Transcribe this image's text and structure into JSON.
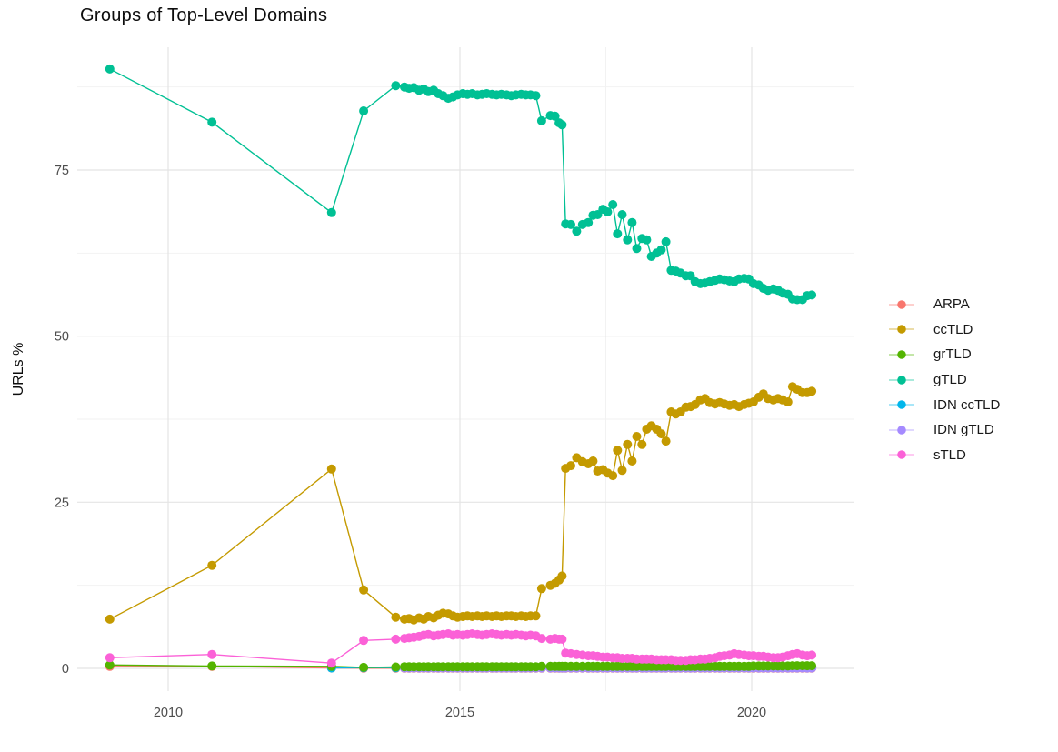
{
  "title": "Groups of Top-Level Domains",
  "y_axis": {
    "label": "URLs %",
    "ticks": [
      "0",
      "25",
      "50",
      "75"
    ]
  },
  "x_axis": {
    "ticks": [
      "2010",
      "2015",
      "2020"
    ]
  },
  "legend": {
    "position": "right",
    "items": [
      {
        "label": "ARPA",
        "color": "#F8766D"
      },
      {
        "label": "ccTLD",
        "color": "#C49A00"
      },
      {
        "label": "grTLD",
        "color": "#53B400"
      },
      {
        "label": "gTLD",
        "color": "#00C094"
      },
      {
        "label": "IDN ccTLD",
        "color": "#00B6EB"
      },
      {
        "label": "IDN gTLD",
        "color": "#A58AFF"
      },
      {
        "label": "sTLD",
        "color": "#FB61D7"
      }
    ]
  },
  "chart_data": {
    "type": "line",
    "title": "Groups of Top-Level Domains",
    "xlabel": "",
    "ylabel": "URLs %",
    "grid": true,
    "legend_position": "right",
    "x_ticks": [
      2010,
      2015,
      2020
    ],
    "x_minor_ticks": [
      2012.5,
      2017.5
    ],
    "y_ticks": [
      0,
      25,
      50,
      75
    ],
    "y_minor_ticks": [
      12.5,
      37.5,
      62.5,
      87.5
    ],
    "xlim": [
      2008.44,
      2021.76
    ],
    "ylim": [
      -3.4,
      93.5
    ],
    "x": [
      2009.0,
      2010.75,
      2012.8,
      2013.35,
      2013.9,
      2014.05,
      2014.13,
      2014.21,
      2014.3,
      2014.38,
      2014.46,
      2014.55,
      2014.63,
      2014.71,
      2014.8,
      2014.88,
      2014.96,
      2015.05,
      2015.13,
      2015.21,
      2015.3,
      2015.38,
      2015.46,
      2015.55,
      2015.63,
      2015.71,
      2015.8,
      2015.88,
      2015.96,
      2016.05,
      2016.13,
      2016.21,
      2016.3,
      2016.4,
      2016.55,
      2016.63,
      2016.7,
      2016.75,
      2016.81,
      2016.9,
      2017.0,
      2017.1,
      2017.2,
      2017.28,
      2017.36,
      2017.45,
      2017.53,
      2017.62,
      2017.7,
      2017.78,
      2017.87,
      2017.95,
      2018.03,
      2018.12,
      2018.2,
      2018.28,
      2018.37,
      2018.45,
      2018.53,
      2018.62,
      2018.7,
      2018.78,
      2018.87,
      2018.95,
      2019.03,
      2019.12,
      2019.2,
      2019.28,
      2019.37,
      2019.45,
      2019.53,
      2019.62,
      2019.7,
      2019.78,
      2019.87,
      2019.95,
      2020.03,
      2020.12,
      2020.2,
      2020.28,
      2020.37,
      2020.45,
      2020.53,
      2020.62,
      2020.7,
      2020.78,
      2020.87,
      2020.95,
      2021.03
    ],
    "series": [
      {
        "name": "ARPA",
        "color": "#F8766D",
        "values": [
          0.3,
          0.3,
          0.05,
          0.03,
          0.03,
          0.03,
          0.03,
          0.03,
          0.03,
          0.03,
          0.03,
          0.03,
          0.03,
          0.03,
          0.03,
          0.03,
          0.03,
          0.03,
          0.03,
          0.03,
          0.03,
          0.03,
          0.03,
          0.03,
          0.03,
          0.03,
          0.03,
          0.03,
          0.03,
          0.03,
          0.03,
          0.03,
          0.03,
          0.03,
          0.03,
          0.03,
          0.03,
          0.03,
          0.03,
          0.03,
          0.03,
          0.03,
          0.03,
          0.03,
          0.03,
          0.03,
          0.03,
          0.03,
          0.03,
          0.03,
          0.03,
          0.03,
          0.03,
          0.03,
          0.03,
          0.03,
          0.03,
          0.03,
          0.03,
          0.03,
          0.03,
          0.03,
          0.03,
          0.03,
          0.03,
          0.03,
          0.03,
          0.03,
          0.03,
          0.03,
          0.03,
          0.03,
          0.03,
          0.03,
          0.03,
          0.03,
          0.03,
          0.03,
          0.03,
          0.03,
          0.03,
          0.03,
          0.03,
          0.03,
          0.03,
          0.03,
          0.03,
          0.03,
          0.03
        ]
      },
      {
        "name": "ccTLD",
        "color": "#C49A00",
        "values": [
          7.4,
          15.5,
          30.0,
          11.8,
          7.7,
          7.4,
          7.5,
          7.3,
          7.6,
          7.4,
          7.8,
          7.6,
          8.0,
          8.3,
          8.2,
          7.9,
          7.7,
          7.8,
          7.9,
          7.8,
          7.9,
          7.8,
          7.9,
          7.8,
          7.9,
          7.8,
          7.9,
          7.9,
          7.8,
          7.9,
          7.8,
          7.9,
          7.9,
          12.0,
          12.5,
          12.8,
          13.3,
          13.9,
          30.1,
          30.5,
          31.7,
          31.1,
          30.8,
          31.2,
          29.7,
          29.9,
          29.4,
          29.0,
          32.8,
          29.8,
          33.7,
          31.2,
          34.9,
          33.7,
          36.0,
          36.5,
          36.0,
          35.3,
          34.2,
          38.6,
          38.3,
          38.6,
          39.3,
          39.4,
          39.7,
          40.4,
          40.6,
          40.0,
          39.8,
          40.0,
          39.8,
          39.6,
          39.7,
          39.4,
          39.7,
          39.9,
          40.1,
          40.8,
          41.3,
          40.6,
          40.4,
          40.6,
          40.4,
          40.1,
          42.4,
          42.0,
          41.5,
          41.5,
          41.7
        ]
      },
      {
        "name": "grTLD",
        "color": "#53B400",
        "values": [
          0.5,
          0.35,
          0.3,
          0.15,
          0.2,
          0.25,
          0.25,
          0.25,
          0.25,
          0.25,
          0.25,
          0.25,
          0.25,
          0.25,
          0.25,
          0.25,
          0.25,
          0.25,
          0.25,
          0.25,
          0.25,
          0.25,
          0.25,
          0.25,
          0.25,
          0.25,
          0.25,
          0.25,
          0.25,
          0.25,
          0.25,
          0.25,
          0.25,
          0.3,
          0.3,
          0.3,
          0.3,
          0.3,
          0.3,
          0.3,
          0.3,
          0.3,
          0.3,
          0.3,
          0.3,
          0.3,
          0.3,
          0.3,
          0.3,
          0.3,
          0.3,
          0.3,
          0.3,
          0.3,
          0.3,
          0.3,
          0.3,
          0.3,
          0.3,
          0.3,
          0.3,
          0.3,
          0.3,
          0.3,
          0.3,
          0.3,
          0.3,
          0.3,
          0.3,
          0.3,
          0.3,
          0.3,
          0.3,
          0.3,
          0.3,
          0.3,
          0.35,
          0.35,
          0.35,
          0.35,
          0.35,
          0.35,
          0.35,
          0.35,
          0.4,
          0.4,
          0.4,
          0.4,
          0.4
        ]
      },
      {
        "name": "gTLD",
        "color": "#00C094",
        "values": [
          90.2,
          82.2,
          68.6,
          83.9,
          87.7,
          87.5,
          87.3,
          87.4,
          87.0,
          87.2,
          86.8,
          87.0,
          86.5,
          86.2,
          85.8,
          86.0,
          86.3,
          86.5,
          86.4,
          86.5,
          86.3,
          86.4,
          86.5,
          86.4,
          86.3,
          86.4,
          86.3,
          86.2,
          86.3,
          86.4,
          86.3,
          86.3,
          86.2,
          82.4,
          83.2,
          83.1,
          82.1,
          81.8,
          66.9,
          66.8,
          65.8,
          66.8,
          67.1,
          68.2,
          68.3,
          69.1,
          68.7,
          69.8,
          65.4,
          68.3,
          64.5,
          67.1,
          63.2,
          64.7,
          64.5,
          62.0,
          62.5,
          63.0,
          64.2,
          59.9,
          59.8,
          59.5,
          59.1,
          59.1,
          58.2,
          57.9,
          58.0,
          58.2,
          58.4,
          58.6,
          58.5,
          58.3,
          58.2,
          58.6,
          58.7,
          58.6,
          57.9,
          57.7,
          57.2,
          56.9,
          57.1,
          56.9,
          56.5,
          56.3,
          55.6,
          55.5,
          55.5,
          56.1,
          56.2
        ]
      },
      {
        "name": "IDN ccTLD",
        "color": "#00B6EB",
        "values": [
          null,
          null,
          0.05,
          0.1,
          0.1,
          0.1,
          0.1,
          0.1,
          0.1,
          0.1,
          0.1,
          0.1,
          0.1,
          0.1,
          0.1,
          0.1,
          0.1,
          0.1,
          0.1,
          0.1,
          0.1,
          0.1,
          0.1,
          0.1,
          0.1,
          0.1,
          0.1,
          0.1,
          0.1,
          0.1,
          0.1,
          0.1,
          0.1,
          0.1,
          0.1,
          0.1,
          0.1,
          0.1,
          0.1,
          0.1,
          0.1,
          0.1,
          0.1,
          0.1,
          0.1,
          0.1,
          0.1,
          0.1,
          0.1,
          0.1,
          0.1,
          0.1,
          0.1,
          0.1,
          0.1,
          0.1,
          0.1,
          0.1,
          0.1,
          0.1,
          0.1,
          0.1,
          0.1,
          0.1,
          0.1,
          0.1,
          0.1,
          0.1,
          0.1,
          0.1,
          0.1,
          0.1,
          0.1,
          0.1,
          0.1,
          0.1,
          0.1,
          0.1,
          0.1,
          0.1,
          0.1,
          0.1,
          0.1,
          0.1,
          0.1,
          0.1,
          0.1,
          0.1,
          0.1
        ]
      },
      {
        "name": "IDN gTLD",
        "color": "#A58AFF",
        "values": [
          null,
          null,
          null,
          null,
          null,
          0.05,
          0.05,
          0.05,
          0.05,
          0.05,
          0.05,
          0.05,
          0.05,
          0.05,
          0.05,
          0.05,
          0.05,
          0.05,
          0.05,
          0.05,
          0.05,
          0.05,
          0.05,
          0.05,
          0.05,
          0.05,
          0.05,
          0.05,
          0.05,
          0.05,
          0.05,
          0.05,
          0.05,
          0.05,
          0.05,
          0.05,
          0.05,
          0.05,
          0.05,
          0.05,
          0.05,
          0.05,
          0.05,
          0.05,
          0.05,
          0.05,
          0.05,
          0.05,
          0.05,
          0.05,
          0.05,
          0.05,
          0.05,
          0.05,
          0.05,
          0.05,
          0.05,
          0.05,
          0.05,
          0.05,
          0.05,
          0.05,
          0.05,
          0.05,
          0.05,
          0.05,
          0.05,
          0.05,
          0.05,
          0.05,
          0.05,
          0.05,
          0.05,
          0.05,
          0.05,
          0.05,
          0.05,
          0.05,
          0.05,
          0.05,
          0.05,
          0.05,
          0.05,
          0.05,
          0.05,
          0.05,
          0.05,
          0.05,
          0.05
        ]
      },
      {
        "name": "sTLD",
        "color": "#FB61D7",
        "values": [
          1.6,
          2.1,
          0.8,
          4.2,
          4.4,
          4.5,
          4.6,
          4.7,
          4.8,
          5.0,
          5.1,
          4.9,
          5.0,
          5.1,
          5.2,
          5.0,
          5.1,
          5.0,
          5.1,
          5.2,
          5.1,
          5.0,
          5.1,
          5.2,
          5.1,
          5.0,
          5.1,
          5.0,
          5.1,
          5.0,
          4.9,
          5.0,
          4.9,
          4.5,
          4.4,
          4.5,
          4.4,
          4.4,
          2.3,
          2.2,
          2.1,
          2.0,
          1.9,
          1.9,
          1.8,
          1.7,
          1.7,
          1.6,
          1.6,
          1.5,
          1.5,
          1.5,
          1.4,
          1.4,
          1.4,
          1.4,
          1.3,
          1.3,
          1.3,
          1.3,
          1.2,
          1.2,
          1.2,
          1.3,
          1.3,
          1.4,
          1.4,
          1.5,
          1.6,
          1.8,
          1.9,
          2.0,
          2.2,
          2.1,
          2.0,
          1.9,
          1.9,
          1.8,
          1.8,
          1.7,
          1.6,
          1.6,
          1.7,
          1.9,
          2.1,
          2.2,
          2.0,
          1.9,
          2.0
        ]
      }
    ]
  }
}
